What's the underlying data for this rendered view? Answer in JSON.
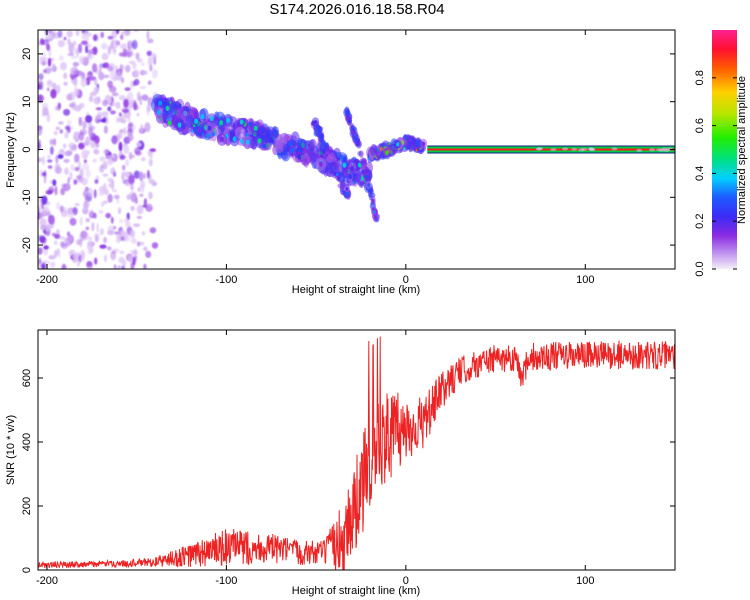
{
  "title": "S174.2026.016.18.58.R04",
  "colors": {
    "snr_line": "#ee2222",
    "carrier_band": "#00cc44",
    "carrier_core": "#ff1a1a"
  },
  "chart_data": [
    {
      "type": "heatmap",
      "name": "spectrogram",
      "xlabel": "Height of straight line (km)",
      "ylabel": "Frequency (Hz)",
      "xlim": [
        -205,
        150
      ],
      "ylim": [
        -25,
        25
      ],
      "xticks": [
        -200,
        -100,
        0,
        100
      ],
      "yticks": [
        -20,
        -10,
        0,
        10,
        20
      ],
      "colorbar": {
        "label": "Normalized spectral amplitude",
        "range": [
          0.0,
          1.0
        ],
        "ticks": [
          0.0,
          0.2,
          0.4,
          0.6,
          0.8
        ],
        "tick_labels": [
          "0.0",
          "0.2",
          "0.4",
          "0.6",
          "0.8"
        ]
      },
      "features": [
        {
          "name": "noise-region",
          "x_range": [
            -205,
            -140
          ],
          "freq_range": [
            -25,
            25
          ],
          "amplitude": 0.1
        },
        {
          "name": "descending-trace",
          "x": [
            -140,
            -120,
            -100,
            -80,
            -60,
            -40,
            -20
          ],
          "freq": [
            9,
            6,
            4,
            3,
            0,
            -3,
            -6
          ],
          "amplitude": 0.35
        },
        {
          "name": "branch-1",
          "x": [
            -33,
            -24,
            -16
          ],
          "freq": [
            8,
            -2,
            -15
          ],
          "amplitude": 0.2
        },
        {
          "name": "branch-2",
          "x": [
            -52,
            -40,
            -32
          ],
          "freq": [
            6,
            -3,
            -10
          ],
          "amplitude": 0.2
        },
        {
          "name": "converging-trace",
          "x": [
            -20,
            -10,
            0,
            10
          ],
          "freq": [
            -1,
            0,
            1.5,
            0.5
          ],
          "amplitude": 0.7
        },
        {
          "name": "carrier-line",
          "x_range": [
            12,
            150
          ],
          "freq": 0,
          "amplitude": 1.0
        }
      ]
    },
    {
      "type": "line",
      "name": "snr",
      "xlabel": "Height of straight line (km)",
      "ylabel": "SNR (10 * v/v)",
      "xlim": [
        -205,
        150
      ],
      "ylim": [
        0,
        750
      ],
      "xticks": [
        -200,
        -100,
        0,
        100
      ],
      "yticks": [
        0,
        200,
        400,
        600
      ],
      "series": [
        {
          "name": "SNR",
          "envelope_x": [
            -205,
            -160,
            -140,
            -120,
            -100,
            -80,
            -60,
            -45,
            -35,
            -25,
            -18,
            -10,
            0,
            10,
            20,
            30,
            45,
            60,
            80,
            100,
            120,
            150
          ],
          "envelope_y": [
            15,
            20,
            25,
            45,
            70,
            70,
            55,
            55,
            100,
            250,
            350,
            420,
            440,
            460,
            560,
            620,
            655,
            665,
            668,
            670,
            672,
            670
          ],
          "spread_y": [
            10,
            10,
            15,
            40,
            60,
            50,
            40,
            40,
            120,
            160,
            200,
            140,
            110,
            80,
            60,
            45,
            45,
            45,
            45,
            45,
            45,
            45
          ]
        }
      ]
    }
  ]
}
